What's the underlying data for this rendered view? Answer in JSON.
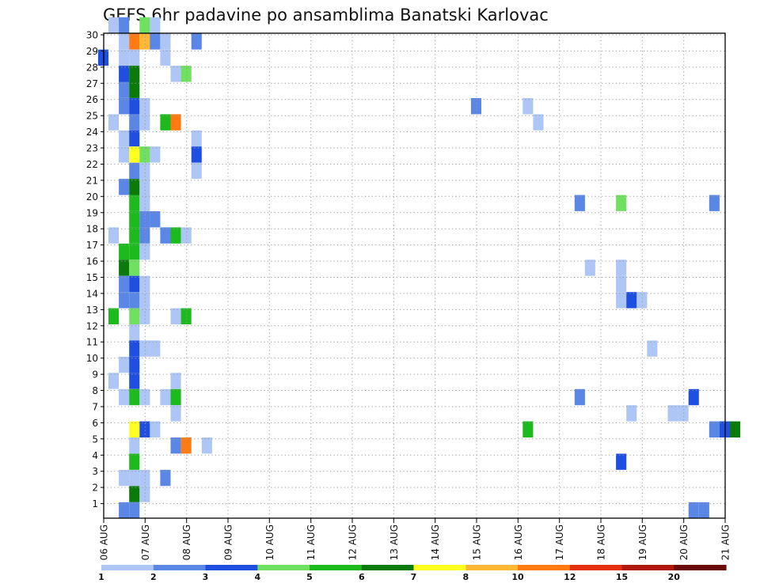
{
  "chart_data": {
    "type": "heatmap",
    "title": "GEFS 6hr padavine po ansamblima Banatski Karlovac",
    "xlabel": "",
    "ylabel": "",
    "x_start_date": "2020-08-06T00:00",
    "x_step_hours": 6,
    "x_range": [
      "06 AUG",
      "21 AUG"
    ],
    "x_tick_labels": [
      "06 AUG",
      "07 AUG",
      "08 AUG",
      "09 AUG",
      "10 AUG",
      "11 AUG",
      "12 AUG",
      "13 AUG",
      "14 AUG",
      "15 AUG",
      "16 AUG",
      "17 AUG",
      "18 AUG",
      "19 AUG",
      "20 AUG",
      "21 AUG"
    ],
    "y_tick_labels": [
      "1",
      "2",
      "3",
      "4",
      "5",
      "6",
      "7",
      "8",
      "9",
      "10",
      "11",
      "12",
      "13",
      "14",
      "15",
      "16",
      "17",
      "18",
      "19",
      "20",
      "21",
      "22",
      "23",
      "24",
      "25",
      "26",
      "27",
      "28",
      "29",
      "30"
    ],
    "ylim": [
      0,
      30
    ],
    "grid": true,
    "colorbar": {
      "labels": [
        "1",
        "2",
        "3",
        "4",
        "5",
        "6",
        "7",
        "8",
        "10",
        "12",
        "15",
        "20"
      ],
      "colors": [
        "#aec6f5",
        "#5a87e6",
        "#1f4fe0",
        "#70e060",
        "#1cba1c",
        "#0a7a0a",
        "#ffff22",
        "#ffb833",
        "#ff7a10",
        "#e53010",
        "#b01808",
        "#6a0a0a"
      ]
    },
    "cells": [
      {
        "m": 30,
        "t": 0,
        "v": 1.5
      },
      {
        "m": 30,
        "t": 1,
        "v": 2.5
      },
      {
        "m": 30,
        "t": 3,
        "v": 4.5
      },
      {
        "m": 30,
        "t": 4,
        "v": 1.5
      },
      {
        "m": 29,
        "t": 1,
        "v": 1.5
      },
      {
        "m": 29,
        "t": 2,
        "v": 11
      },
      {
        "m": 29,
        "t": 3,
        "v": 9
      },
      {
        "m": 29,
        "t": 4,
        "v": 2.5
      },
      {
        "m": 29,
        "t": 5,
        "v": 1.5
      },
      {
        "m": 29,
        "t": 8,
        "v": 2.5
      },
      {
        "m": 28,
        "t": -1,
        "v": 3.5
      },
      {
        "m": 28,
        "t": 1,
        "v": 1.5
      },
      {
        "m": 28,
        "t": 2,
        "v": 1.5
      },
      {
        "m": 28,
        "t": 5,
        "v": 1.5
      },
      {
        "m": 27,
        "t": 1,
        "v": 3.5
      },
      {
        "m": 27,
        "t": 2,
        "v": 6.5
      },
      {
        "m": 27,
        "t": 6,
        "v": 1.5
      },
      {
        "m": 27,
        "t": 7,
        "v": 4.5
      },
      {
        "m": 26,
        "t": 1,
        "v": 2.5
      },
      {
        "m": 26,
        "t": 2,
        "v": 6.5
      },
      {
        "m": 25,
        "t": 1,
        "v": 2.5
      },
      {
        "m": 25,
        "t": 2,
        "v": 3.5
      },
      {
        "m": 25,
        "t": 3,
        "v": 1.5
      },
      {
        "m": 25,
        "t": 35,
        "v": 2.5
      },
      {
        "m": 25,
        "t": 40,
        "v": 1.5
      },
      {
        "m": 24,
        "t": 0,
        "v": 1.5
      },
      {
        "m": 24,
        "t": 2,
        "v": 2.5
      },
      {
        "m": 24,
        "t": 3,
        "v": 1.5
      },
      {
        "m": 24,
        "t": 5,
        "v": 5.5
      },
      {
        "m": 24,
        "t": 6,
        "v": 11
      },
      {
        "m": 24,
        "t": 41,
        "v": 1.5
      },
      {
        "m": 23,
        "t": 1,
        "v": 1.5
      },
      {
        "m": 23,
        "t": 2,
        "v": 3.5
      },
      {
        "m": 23,
        "t": 8,
        "v": 1.5
      },
      {
        "m": 22,
        "t": 1,
        "v": 1.5
      },
      {
        "m": 22,
        "t": 2,
        "v": 7.5
      },
      {
        "m": 22,
        "t": 3,
        "v": 4.5
      },
      {
        "m": 22,
        "t": 4,
        "v": 1.5
      },
      {
        "m": 22,
        "t": 8,
        "v": 3.5
      },
      {
        "m": 21,
        "t": 2,
        "v": 2.5
      },
      {
        "m": 21,
        "t": 3,
        "v": 1.5
      },
      {
        "m": 21,
        "t": 8,
        "v": 1.5
      },
      {
        "m": 20,
        "t": 1,
        "v": 2.5
      },
      {
        "m": 20,
        "t": 2,
        "v": 6.5
      },
      {
        "m": 20,
        "t": 3,
        "v": 1.5
      },
      {
        "m": 19,
        "t": 2,
        "v": 5.5
      },
      {
        "m": 19,
        "t": 3,
        "v": 1.5
      },
      {
        "m": 19,
        "t": 45,
        "v": 2.5
      },
      {
        "m": 19,
        "t": 49,
        "v": 4.5
      },
      {
        "m": 19,
        "t": 58,
        "v": 2.5
      },
      {
        "m": 18,
        "t": 2,
        "v": 5.5
      },
      {
        "m": 18,
        "t": 3,
        "v": 2.5
      },
      {
        "m": 18,
        "t": 4,
        "v": 2.5
      },
      {
        "m": 17,
        "t": 0,
        "v": 1.5
      },
      {
        "m": 17,
        "t": 2,
        "v": 5.5
      },
      {
        "m": 17,
        "t": 3,
        "v": 2.5
      },
      {
        "m": 17,
        "t": 5,
        "v": 2.5
      },
      {
        "m": 17,
        "t": 6,
        "v": 5.5
      },
      {
        "m": 17,
        "t": 7,
        "v": 1.5
      },
      {
        "m": 16,
        "t": 1,
        "v": 5.5
      },
      {
        "m": 16,
        "t": 2,
        "v": 5.5
      },
      {
        "m": 16,
        "t": 3,
        "v": 1.5
      },
      {
        "m": 15,
        "t": 1,
        "v": 6.5
      },
      {
        "m": 15,
        "t": 2,
        "v": 4.5
      },
      {
        "m": 15,
        "t": 46,
        "v": 1.5
      },
      {
        "m": 15,
        "t": 49,
        "v": 1.5
      },
      {
        "m": 14,
        "t": 1,
        "v": 2.5
      },
      {
        "m": 14,
        "t": 2,
        "v": 3.5
      },
      {
        "m": 14,
        "t": 3,
        "v": 1.5
      },
      {
        "m": 14,
        "t": 49,
        "v": 1.5
      },
      {
        "m": 13,
        "t": 1,
        "v": 2.5
      },
      {
        "m": 13,
        "t": 2,
        "v": 2.5
      },
      {
        "m": 13,
        "t": 3,
        "v": 1.5
      },
      {
        "m": 13,
        "t": 49,
        "v": 1.5
      },
      {
        "m": 13,
        "t": 50,
        "v": 3.5
      },
      {
        "m": 13,
        "t": 51,
        "v": 1.5
      },
      {
        "m": 12,
        "t": 0,
        "v": 5.5
      },
      {
        "m": 12,
        "t": 2,
        "v": 4.5
      },
      {
        "m": 12,
        "t": 3,
        "v": 1.5
      },
      {
        "m": 12,
        "t": 6,
        "v": 1.5
      },
      {
        "m": 12,
        "t": 7,
        "v": 5.5
      },
      {
        "m": 11,
        "t": 2,
        "v": 1.5
      },
      {
        "m": 10,
        "t": 2,
        "v": 3.5
      },
      {
        "m": 10,
        "t": 3,
        "v": 1.5
      },
      {
        "m": 10,
        "t": 4,
        "v": 1.5
      },
      {
        "m": 10,
        "t": 52,
        "v": 1.5
      },
      {
        "m": 9,
        "t": 1,
        "v": 1.5
      },
      {
        "m": 9,
        "t": 2,
        "v": 3.5
      },
      {
        "m": 8,
        "t": 0,
        "v": 1.5
      },
      {
        "m": 8,
        "t": 2,
        "v": 3.5
      },
      {
        "m": 8,
        "t": 6,
        "v": 1.5
      },
      {
        "m": 7,
        "t": 1,
        "v": 1.5
      },
      {
        "m": 7,
        "t": 2,
        "v": 5.5
      },
      {
        "m": 7,
        "t": 3,
        "v": 1.5
      },
      {
        "m": 7,
        "t": 5,
        "v": 1.5
      },
      {
        "m": 7,
        "t": 6,
        "v": 5.5
      },
      {
        "m": 7,
        "t": 45,
        "v": 2.5
      },
      {
        "m": 7,
        "t": 56,
        "v": 3.5
      },
      {
        "m": 6,
        "t": 6,
        "v": 1.5
      },
      {
        "m": 6,
        "t": 50,
        "v": 1.5
      },
      {
        "m": 6,
        "t": 54,
        "v": 1.5
      },
      {
        "m": 6,
        "t": 55,
        "v": 1.5
      },
      {
        "m": 5,
        "t": 2,
        "v": 7.5
      },
      {
        "m": 5,
        "t": 3,
        "v": 3.5
      },
      {
        "m": 5,
        "t": 4,
        "v": 1.5
      },
      {
        "m": 5,
        "t": 40,
        "v": 5.5
      },
      {
        "m": 5,
        "t": 58,
        "v": 2.5
      },
      {
        "m": 5,
        "t": 59,
        "v": 3.5
      },
      {
        "m": 5,
        "t": 60,
        "v": 6.5
      },
      {
        "m": 4,
        "t": 2,
        "v": 1.5
      },
      {
        "m": 4,
        "t": 6,
        "v": 2.5
      },
      {
        "m": 4,
        "t": 7,
        "v": 11
      },
      {
        "m": 4,
        "t": 9,
        "v": 1.5
      },
      {
        "m": 3,
        "t": 2,
        "v": 5.5
      },
      {
        "m": 3,
        "t": 49,
        "v": 3.5
      },
      {
        "m": 2,
        "t": 1,
        "v": 1.5
      },
      {
        "m": 2,
        "t": 2,
        "v": 1.5
      },
      {
        "m": 2,
        "t": 3,
        "v": 1.5
      },
      {
        "m": 2,
        "t": 5,
        "v": 2.5
      },
      {
        "m": 1,
        "t": 2,
        "v": 6.5
      },
      {
        "m": 1,
        "t": 3,
        "v": 1.5
      },
      {
        "m": 0,
        "t": 1,
        "v": 2.5
      },
      {
        "m": 0,
        "t": 2,
        "v": 2.5
      },
      {
        "m": 0,
        "t": 56,
        "v": 2.5
      },
      {
        "m": 0,
        "t": 57,
        "v": 2.5
      }
    ]
  }
}
